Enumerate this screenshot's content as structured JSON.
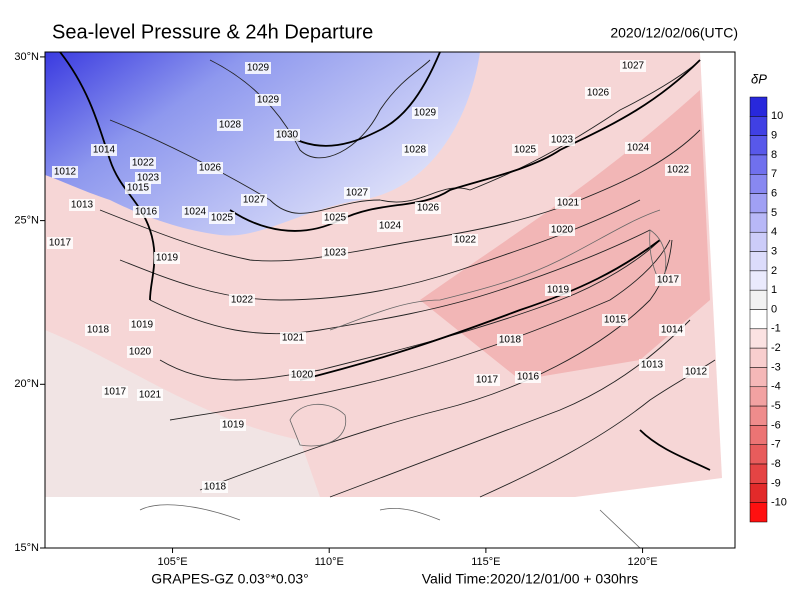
{
  "title": "Sea-level Pressure & 24h Departure",
  "datetime": "2020/12/02/06(UTC)",
  "model": "GRAPES-GZ 0.03°*0.03°",
  "valid_time": "Valid Time:2020/12/01/00 + 030hrs",
  "map": {
    "lonlim": [
      100.93,
      122.95
    ],
    "latlim": [
      15,
      30.15
    ],
    "lonticks": [
      {
        "value": 105,
        "label": "105°E"
      },
      {
        "value": 110,
        "label": "110°E"
      },
      {
        "value": 115,
        "label": "115°E"
      },
      {
        "value": 120,
        "label": "120°E"
      }
    ],
    "latticks": [
      {
        "value": 15,
        "label": "15°N"
      },
      {
        "value": 20,
        "label": "20°N"
      },
      {
        "value": 25,
        "label": "25°N"
      },
      {
        "value": 30,
        "label": "30°N"
      }
    ],
    "contour_labels": [
      1029,
      1029,
      1028,
      1030,
      1029,
      1028,
      1026,
      1027,
      1025,
      1023,
      1024,
      1022,
      1022,
      1026,
      1023,
      1015,
      1013,
      1016,
      1024,
      1025,
      1027,
      1027,
      1025,
      1024,
      1026,
      1022,
      1021,
      1020,
      1023,
      1019,
      1017,
      1014,
      1012,
      1022,
      1018,
      1019,
      1020,
      1021,
      1020,
      1021,
      1017,
      1019,
      1018,
      1019,
      1018,
      1017,
      1016,
      1015,
      1014,
      1013,
      1012,
      1017
    ]
  },
  "colorbar": {
    "title": "δP",
    "levels": [
      10,
      9,
      8,
      7,
      6,
      5,
      4,
      3,
      2,
      1,
      0,
      -1,
      -2,
      -3,
      -4,
      -5,
      -6,
      -7,
      -8,
      -9,
      -10
    ],
    "colors": [
      "#2828dc",
      "#4040e4",
      "#5858ea",
      "#7070ee",
      "#8888f1",
      "#a0a0f4",
      "#b8b8f7",
      "#ccccf9",
      "#dcdcfb",
      "#eaeafd",
      "#f2f2f2",
      "#ffffff",
      "#fbe2e2",
      "#f8cece",
      "#f5b8b8",
      "#f2a2a2",
      "#ef8c8c",
      "#ec7474",
      "#e85c5c",
      "#e54444",
      "#e22a2a",
      "#ff1010"
    ]
  }
}
